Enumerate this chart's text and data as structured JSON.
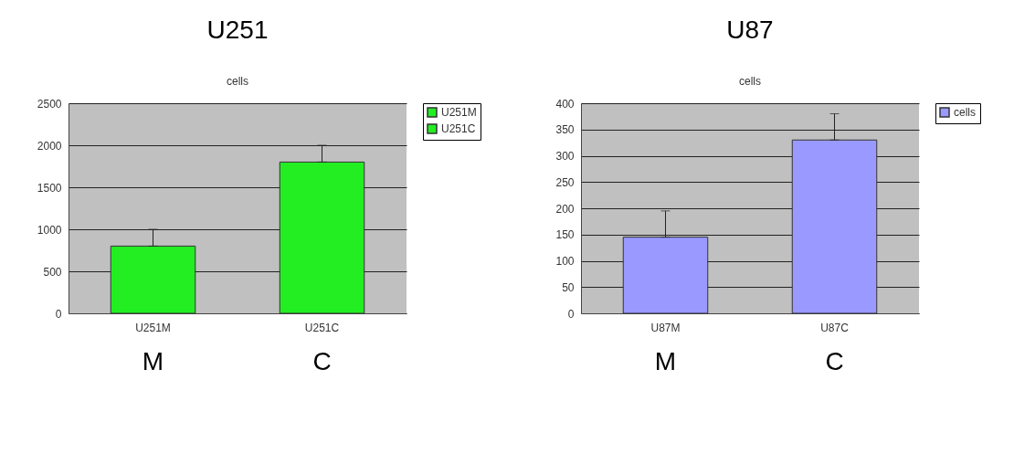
{
  "chart_data": [
    {
      "type": "bar",
      "title": "U251",
      "subtitle": "cells",
      "categories": [
        "U251M",
        "U251C"
      ],
      "series": [
        {
          "name": "U251M",
          "color": "#22ee22",
          "values": [
            800,
            null
          ],
          "errors": [
            [
              800,
              1000
            ],
            null
          ]
        },
        {
          "name": "U251C",
          "color": "#22ee22",
          "values": [
            null,
            1800
          ],
          "errors": [
            null,
            [
              1800,
              2000
            ]
          ]
        }
      ],
      "ylim": [
        0,
        2500
      ],
      "yticks": [
        0,
        500,
        1000,
        1500,
        2000,
        2500
      ],
      "grid": "y",
      "legend": "right",
      "annotations": [
        "M",
        "C"
      ]
    },
    {
      "type": "bar",
      "title": "U87",
      "subtitle": "cells",
      "categories": [
        "U87M",
        "U87C"
      ],
      "series": [
        {
          "name": "cells",
          "color": "#9999ff",
          "values": [
            145,
            330
          ],
          "errors": [
            [
              145,
              195
            ],
            [
              330,
              380
            ]
          ]
        }
      ],
      "ylim": [
        0,
        400
      ],
      "yticks": [
        0,
        50,
        100,
        150,
        200,
        250,
        300,
        350,
        400
      ],
      "grid": "y",
      "legend": "right",
      "annotations": [
        "M",
        "C"
      ]
    }
  ]
}
